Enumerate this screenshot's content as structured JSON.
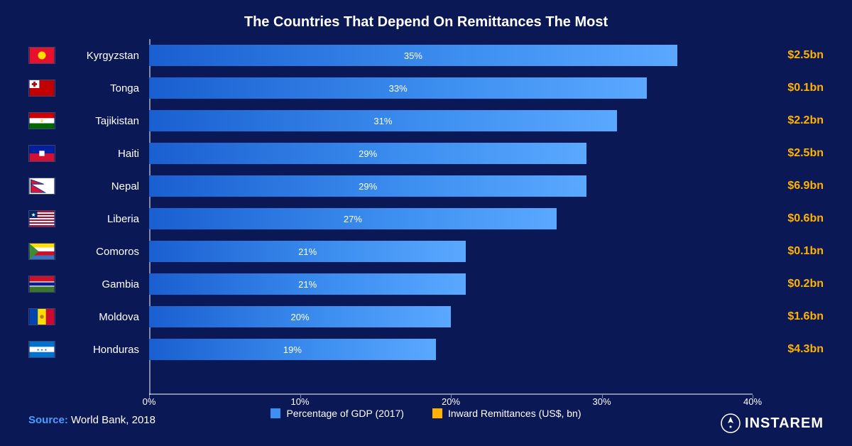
{
  "title": "The Countries That Depend On Remittances The Most",
  "chart": {
    "type": "bar-horizontal",
    "x_axis": {
      "min": 0,
      "max": 40,
      "step": 10,
      "suffix": "%"
    },
    "bar_gradient": [
      "#1a5fd0",
      "#3d8ff0",
      "#5aa8ff"
    ],
    "bar_label_color": "#ffffff",
    "bar_label_fontsize": 13,
    "country_label_color": "#ffffff",
    "country_label_fontsize": 15,
    "amount_color": "#ffb300",
    "amount_fontsize": 16,
    "background_color": "#0a1855",
    "axis_color": "rgba(255,255,255,0.5)"
  },
  "rows": [
    {
      "country": "Kyrgyzstan",
      "pct": 35,
      "pct_label": "35%",
      "amount": "$2.5bn",
      "flag": "kg"
    },
    {
      "country": "Tonga",
      "pct": 33,
      "pct_label": "33%",
      "amount": "$0.1bn",
      "flag": "to"
    },
    {
      "country": "Tajikistan",
      "pct": 31,
      "pct_label": "31%",
      "amount": "$2.2bn",
      "flag": "tj"
    },
    {
      "country": "Haiti",
      "pct": 29,
      "pct_label": "29%",
      "amount": "$2.5bn",
      "flag": "ht"
    },
    {
      "country": "Nepal",
      "pct": 29,
      "pct_label": "29%",
      "amount": "$6.9bn",
      "flag": "np"
    },
    {
      "country": "Liberia",
      "pct": 27,
      "pct_label": "27%",
      "amount": "$0.6bn",
      "flag": "lr"
    },
    {
      "country": "Comoros",
      "pct": 21,
      "pct_label": "21%",
      "amount": "$0.1bn",
      "flag": "km"
    },
    {
      "country": "Gambia",
      "pct": 21,
      "pct_label": "21%",
      "amount": "$0.2bn",
      "flag": "gm"
    },
    {
      "country": "Moldova",
      "pct": 20,
      "pct_label": "20%",
      "amount": "$1.6bn",
      "flag": "md"
    },
    {
      "country": "Honduras",
      "pct": 19,
      "pct_label": "19%",
      "amount": "$4.3bn",
      "flag": "hn"
    }
  ],
  "legend": {
    "series1": {
      "label": "Percentage of GDP (2017)",
      "color": "#3d8ff0"
    },
    "series2": {
      "label": "Inward Remittances (US$, bn)",
      "color": "#ffb300"
    }
  },
  "source": {
    "label": "Source:",
    "text": " World Bank, 2018"
  },
  "logo": {
    "text": "INSTAREM"
  }
}
